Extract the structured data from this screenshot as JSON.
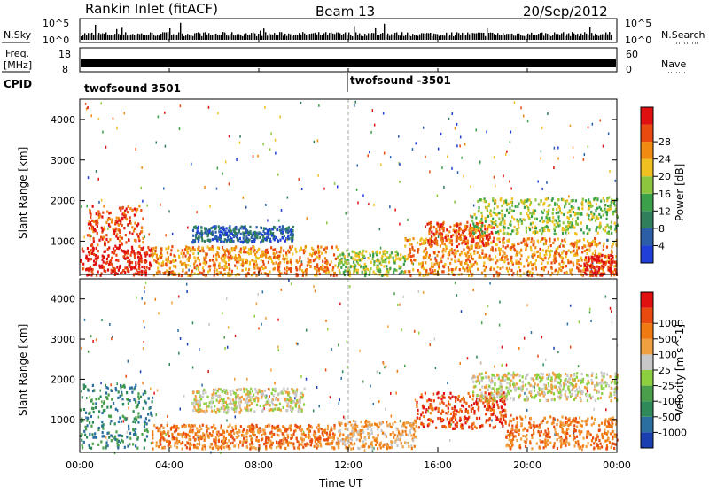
{
  "header": {
    "radar": "Rankin Inlet (fitACF)",
    "beam": "Beam 13",
    "date": "20/Sep/2012"
  },
  "panels": {
    "nsky_label": "N.Sky",
    "nsky_ticks": [
      "10^5",
      "10^0"
    ],
    "nsearch_label": "N.Search",
    "nsearch_ticks": [
      "10^5",
      "10^0"
    ],
    "freq_label_1": "Freq.",
    "freq_label_2": "[MHz]",
    "freq_ticks": [
      "18",
      "8"
    ],
    "nave_label": "Nave",
    "nave_ticks": [
      "60",
      "0"
    ],
    "cpid_label": "CPID",
    "cpid_segments": [
      {
        "label": "twofsound 3501",
        "start_hour": 0
      },
      {
        "label": "twofsound -3501",
        "start_hour": 12
      }
    ]
  },
  "chart_data": [
    {
      "type": "heatmap",
      "title": "",
      "ylabel": "Slant Range [km]",
      "xlabel": "",
      "y_ticks": [
        1000,
        2000,
        3000,
        4000
      ],
      "ylim": [
        180,
        4500
      ],
      "xlim_hours": [
        0,
        24
      ],
      "colorbar_label": "Power [dB]",
      "colorbar_ticks": [
        "4",
        "8",
        "12",
        "16",
        "20",
        "24",
        "28"
      ],
      "colorbar_colors": [
        "#1f3fd8",
        "#2a5fa8",
        "#2f7f5a",
        "#3aa04a",
        "#8cc63f",
        "#f0c020",
        "#f08a10",
        "#e84a10",
        "#e01010"
      ],
      "regions": [
        {
          "t0": 0.0,
          "t1": 3.2,
          "r0": 180,
          "r1": 900,
          "level": 8
        },
        {
          "t0": 0.3,
          "t1": 2.8,
          "r0": 900,
          "r1": 1900,
          "level": 7
        },
        {
          "t0": 3.2,
          "t1": 11.5,
          "r0": 180,
          "r1": 900,
          "level": 6
        },
        {
          "t0": 5.0,
          "t1": 9.5,
          "r0": 1000,
          "r1": 1400,
          "level": 1
        },
        {
          "t0": 11.5,
          "t1": 14.5,
          "r0": 180,
          "r1": 800,
          "level": 4
        },
        {
          "t0": 14.5,
          "t1": 24.0,
          "r0": 180,
          "r1": 1100,
          "level": 6
        },
        {
          "t0": 15.5,
          "t1": 18.5,
          "r0": 900,
          "r1": 1500,
          "level": 7
        },
        {
          "t0": 17.5,
          "t1": 24.0,
          "r0": 1200,
          "r1": 2100,
          "level": 4
        },
        {
          "t0": 22.5,
          "t1": 24.0,
          "r0": 180,
          "r1": 700,
          "level": 8
        }
      ]
    },
    {
      "type": "heatmap",
      "title": "",
      "ylabel": "Slant Range [km]",
      "xlabel": "Time UT",
      "x_ticks": [
        "00:00",
        "04:00",
        "08:00",
        "12:00",
        "16:00",
        "20:00",
        "00:00"
      ],
      "y_ticks": [
        1000,
        2000,
        3000,
        4000
      ],
      "ylim": [
        180,
        4500
      ],
      "xlim_hours": [
        0,
        24
      ],
      "colorbar_label": "Velocity [m s^-1]",
      "colorbar_ticks": [
        "1000",
        "500",
        "100",
        "25",
        "-25",
        "-100",
        "-500",
        "-1000"
      ],
      "colorbar_colors": [
        "#1a3fb0",
        "#2a6fa0",
        "#2f8a5a",
        "#4aa04a",
        "#8ccf3f",
        "#c8c8c8",
        "#f0a040",
        "#f07a10",
        "#e84a10",
        "#e01010"
      ],
      "regions": [
        {
          "t0": 0.0,
          "t1": 3.2,
          "r0": 300,
          "r1": 1900,
          "level": 2
        },
        {
          "t0": 3.2,
          "t1": 11.5,
          "r0": 300,
          "r1": 900,
          "level": 7
        },
        {
          "t0": 5.0,
          "t1": 10.0,
          "r0": 1200,
          "r1": 1800,
          "level": 5
        },
        {
          "t0": 11.5,
          "t1": 15.0,
          "r0": 300,
          "r1": 1000,
          "level": 6
        },
        {
          "t0": 15.0,
          "t1": 19.0,
          "r0": 800,
          "r1": 1700,
          "level": 8
        },
        {
          "t0": 17.5,
          "t1": 24.0,
          "r0": 1500,
          "r1": 2200,
          "level": 5
        },
        {
          "t0": 19.0,
          "t1": 24.0,
          "r0": 300,
          "r1": 1100,
          "level": 7
        }
      ]
    }
  ]
}
